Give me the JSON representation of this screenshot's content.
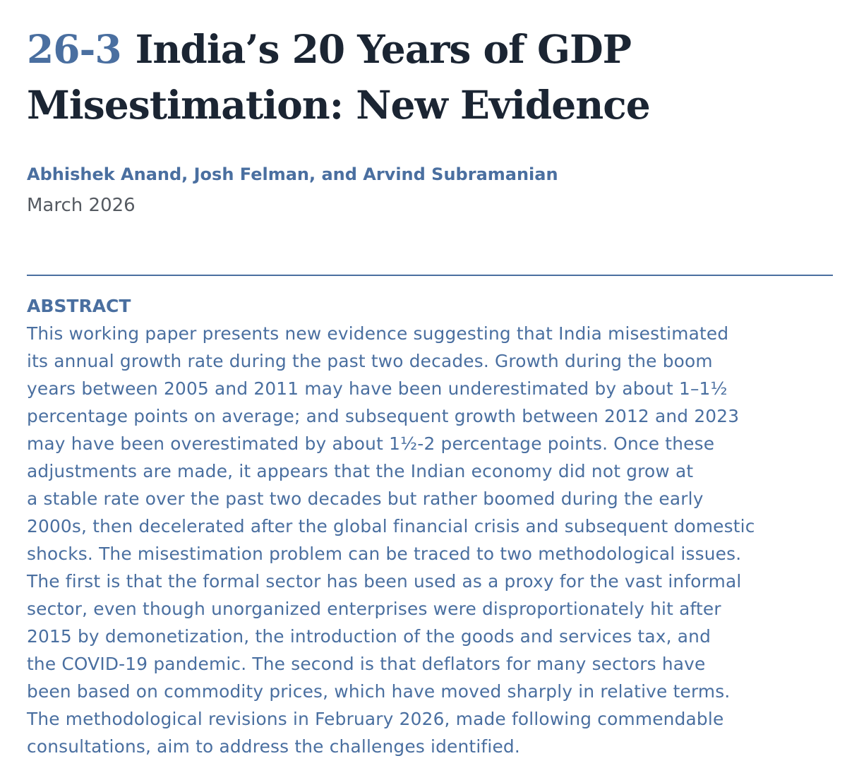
{
  "paper": {
    "number": "26-3",
    "title_line1": "India’s 20 Years of GDP",
    "title_line2": "Misestimation: New Evidence",
    "authors": "Abhishek Anand, Josh Felman, and Arvind Subramanian",
    "date": "March 2026"
  },
  "abstract": {
    "heading": "ABSTRACT",
    "lines": [
      "This working paper presents new evidence suggesting that India misestimated",
      "its annual growth rate during the past two decades. Growth during the boom",
      "years between 2005 and 2011 may have been underestimated by about 1–1½",
      "percentage points on average; and subsequent growth between 2012 and 2023",
      "may have been overestimated by about 1½-2 percentage points. Once these",
      "adjustments are made, it appears that the Indian economy did not grow at",
      "a stable rate over the past two decades but rather boomed during the early",
      "2000s, then decelerated after the global financial crisis and subsequent domestic",
      "shocks. The misestimation problem can be traced to two methodological issues.",
      "The first is that the formal sector has been used as a proxy for the vast informal",
      "sector, even though unorganized enterprises were disproportionately hit after",
      "2015 by demonetization, the introduction of the goods and services tax, and",
      "the COVID-19 pandemic. The second is that deflators for many sectors have",
      "been based on commodity prices, which have moved sharply in relative terms.",
      "The methodological revisions in February 2026, made following commendable",
      "consultations, aim to address the challenges identified."
    ]
  },
  "colors": {
    "accent": "#4a6fa0",
    "title": "#1b2533",
    "date": "#555a61"
  }
}
